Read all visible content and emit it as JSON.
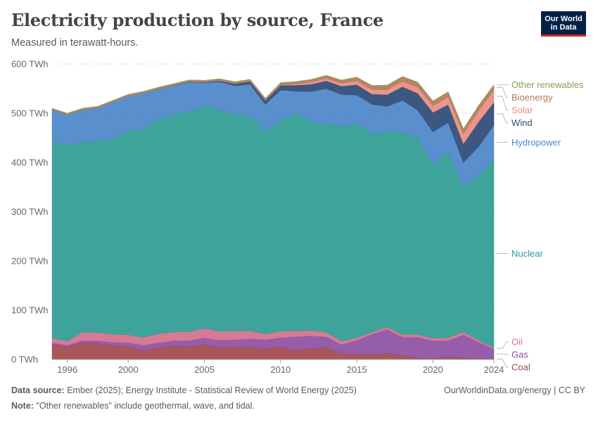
{
  "header": {
    "title": "Electricity production by source, France",
    "subtitle": "Measured in terawatt-hours.",
    "logo_line1": "Our World",
    "logo_line2": "in Data"
  },
  "footer": {
    "source_label": "Data source:",
    "source_text": "Ember (2025); Energy Institute - Statistical Review of World Energy (2025)",
    "note_label": "Note:",
    "note_text": "\"Other renewables\" include geothermal, wave, and tidal.",
    "site": "OurWorldinData.org/energy | CC BY"
  },
  "chart_data": {
    "type": "area",
    "stacked": true,
    "title": "Electricity production by source, France",
    "subtitle": "Measured in terawatt-hours.",
    "x": [
      1995,
      1996,
      1997,
      1998,
      1999,
      2000,
      2001,
      2002,
      2003,
      2004,
      2005,
      2006,
      2007,
      2008,
      2009,
      2010,
      2011,
      2012,
      2013,
      2014,
      2015,
      2016,
      2017,
      2018,
      2019,
      2020,
      2021,
      2022,
      2023,
      2024
    ],
    "x_ticks": [
      1996,
      2000,
      2005,
      2010,
      2015,
      2020,
      2024
    ],
    "y_ticks": [
      0,
      100,
      200,
      300,
      400,
      500,
      600
    ],
    "y_tick_labels": [
      "0 TWh",
      "100 TWh",
      "200 TWh",
      "300 TWh",
      "400 TWh",
      "500 TWh",
      "600 TWh"
    ],
    "ylim": [
      0,
      600
    ],
    "y_unit": "TWh",
    "grid": "horizontal-dashed",
    "legend": "right-end-labels",
    "series": [
      {
        "name": "Coal",
        "color": "#a2484a",
        "values": [
          30,
          25,
          34,
          32,
          28,
          26,
          19,
          24,
          28,
          26,
          30,
          24,
          25,
          26,
          22,
          26,
          18,
          22,
          24,
          11,
          11,
          9,
          13,
          8,
          3,
          2,
          5,
          3,
          2,
          1
        ]
      },
      {
        "name": "Gas",
        "color": "#8c4fa3",
        "values": [
          4,
          4,
          4,
          6,
          7,
          8,
          10,
          10,
          10,
          12,
          14,
          15,
          15,
          16,
          18,
          18,
          28,
          26,
          22,
          19,
          28,
          42,
          48,
          37,
          42,
          36,
          33,
          47,
          33,
          20
        ]
      },
      {
        "name": "Oil",
        "color": "#d46f8a",
        "values": [
          9,
          8,
          17,
          17,
          16,
          16,
          16,
          18,
          18,
          18,
          19,
          18,
          18,
          16,
          12,
          13,
          12,
          11,
          9,
          7,
          5,
          4,
          5,
          5,
          6,
          5,
          6,
          6,
          4,
          3
        ]
      },
      {
        "name": "Nuclear",
        "color": "#2e9c93",
        "values": [
          400,
          398,
          388,
          389,
          398,
          415,
          421,
          438,
          441,
          448,
          452,
          450,
          440,
          439,
          410,
          428,
          442,
          425,
          423,
          437,
          437,
          403,
          398,
          412,
          399,
          353,
          379,
          295,
          335,
          382
        ]
      },
      {
        "name": "Hydropower",
        "color": "#4c86c9",
        "values": [
          64,
          62,
          64,
          67,
          74,
          70,
          75,
          59,
          59,
          59,
          47,
          57,
          58,
          62,
          56,
          62,
          45,
          60,
          72,
          64,
          56,
          60,
          50,
          64,
          56,
          66,
          58,
          49,
          58,
          70
        ]
      },
      {
        "name": "Wind",
        "color": "#2d4a75",
        "values": [
          0,
          0,
          0,
          0,
          0,
          0,
          0,
          0.4,
          0.6,
          1,
          1,
          2,
          4,
          5.7,
          7.9,
          9.9,
          12,
          14.9,
          15.9,
          17,
          21,
          21,
          24,
          28,
          34.6,
          39.7,
          36.8,
          38,
          50.8,
          46
        ]
      },
      {
        "name": "Solar",
        "color": "#ea8c81",
        "values": [
          0,
          0,
          0,
          0,
          0,
          0,
          0,
          0,
          0,
          0,
          0,
          0,
          0,
          0,
          0.2,
          0.6,
          2.1,
          4.1,
          4.7,
          5.9,
          7.8,
          8.7,
          9.6,
          10.6,
          12.4,
          13.4,
          15.1,
          19.6,
          22.3,
          25
        ]
      },
      {
        "name": "Bioenergy",
        "color": "#b07b57",
        "values": [
          2.5,
          2.5,
          2.6,
          2.6,
          2.7,
          2.8,
          2.9,
          3,
          3.1,
          3.2,
          3.3,
          3.4,
          3.5,
          3.7,
          4,
          4.2,
          4.7,
          5.1,
          5.9,
          6,
          7,
          8.1,
          9,
          9.6,
          9.7,
          9.4,
          10.1,
          10.3,
          10.4,
          10.4
        ]
      },
      {
        "name": "Other renewables",
        "color": "#8a9e59",
        "values": [
          0.6,
          0.6,
          0.6,
          0.6,
          0.6,
          0.6,
          0.6,
          0.6,
          0.6,
          0.6,
          0.6,
          0.6,
          0.6,
          0.6,
          0.6,
          0.6,
          0.6,
          0.6,
          0.6,
          0.6,
          0.6,
          0.6,
          0.6,
          0.6,
          0.6,
          0.6,
          0.6,
          0.6,
          0.6,
          0.6
        ]
      }
    ]
  }
}
